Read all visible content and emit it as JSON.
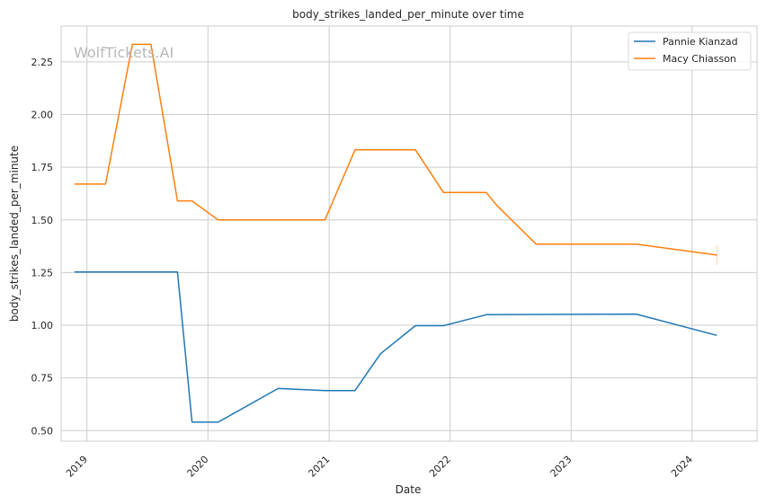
{
  "chart_data": {
    "type": "line",
    "title": "body_strikes_landed_per_minute over time",
    "xlabel": "Date",
    "ylabel": "body_strikes_landed_per_minute",
    "watermark": "WolfTickets.AI",
    "x_ticks": [
      "2019",
      "2020",
      "2021",
      "2022",
      "2023",
      "2024"
    ],
    "y_ticks": [
      "0.50",
      "0.75",
      "1.00",
      "1.25",
      "1.50",
      "1.75",
      "2.00",
      "2.25"
    ],
    "xlim": [
      "2018-10-15",
      "2024-07-15"
    ],
    "ylim": [
      0.45,
      2.42
    ],
    "grid": true,
    "legend_position": "top-right",
    "series": [
      {
        "name": "Pannie Kianzad",
        "color": "#1f77b4",
        "points": [
          [
            "2018-11-24",
            1.253
          ],
          [
            "2019-10-01",
            1.253
          ],
          [
            "2019-11-14",
            0.54
          ],
          [
            "2020-02-01",
            0.54
          ],
          [
            "2020-07-31",
            0.7
          ],
          [
            "2020-12-19",
            0.69
          ],
          [
            "2021-03-20",
            0.69
          ],
          [
            "2021-06-05",
            0.865
          ],
          [
            "2021-09-18",
            0.998
          ],
          [
            "2021-12-12",
            0.998
          ],
          [
            "2022-04-20",
            1.05
          ],
          [
            "2023-07-16",
            1.053
          ],
          [
            "2024-03-16",
            0.952
          ]
        ]
      },
      {
        "name": "Macy Chiasson",
        "color": "#ff7f0e",
        "points": [
          [
            "2018-11-24",
            1.67
          ],
          [
            "2019-02-26",
            1.67
          ],
          [
            "2019-05-18",
            2.333
          ],
          [
            "2019-07-13",
            2.333
          ],
          [
            "2019-10-01",
            1.59
          ],
          [
            "2019-11-14",
            1.59
          ],
          [
            "2020-02-01",
            1.5
          ],
          [
            "2020-12-19",
            1.5
          ],
          [
            "2021-03-20",
            1.833
          ],
          [
            "2021-09-18",
            1.833
          ],
          [
            "2021-12-12",
            1.63
          ],
          [
            "2022-04-20",
            1.63
          ],
          [
            "2022-05-21",
            1.57
          ],
          [
            "2022-09-17",
            1.385
          ],
          [
            "2023-07-16",
            1.385
          ],
          [
            "2024-03-16",
            1.333
          ]
        ]
      }
    ]
  }
}
